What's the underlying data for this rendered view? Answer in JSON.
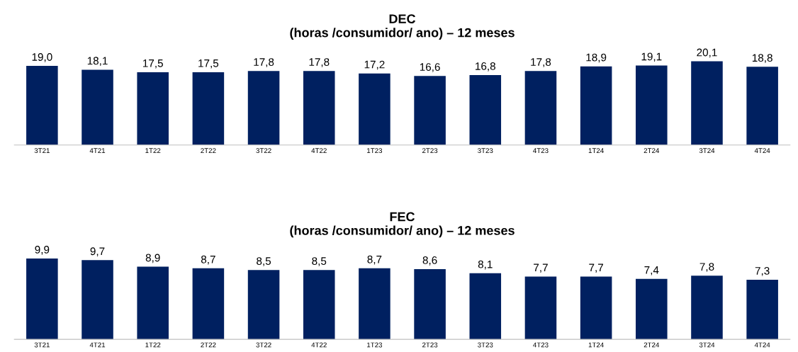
{
  "chart_data": [
    {
      "type": "bar",
      "title": "DEC\n(horas /consumidor/ ano) – 12 meses",
      "categories": [
        "3T21",
        "4T21",
        "1T22",
        "2T22",
        "3T22",
        "4T22",
        "1T23",
        "2T23",
        "3T23",
        "4T23",
        "1T24",
        "2T24",
        "3T24",
        "4T24"
      ],
      "values": [
        19.0,
        18.1,
        17.5,
        17.5,
        17.8,
        17.8,
        17.2,
        16.6,
        16.8,
        17.8,
        18.9,
        19.1,
        20.1,
        18.8
      ],
      "value_labels": [
        "19,0",
        "18,1",
        "17,5",
        "17,5",
        "17,8",
        "17,8",
        "17,2",
        "16,6",
        "16,8",
        "17,8",
        "18,9",
        "19,1",
        "20,1",
        "18,8"
      ],
      "color": "#002060",
      "tick_labels": "x"
    },
    {
      "type": "bar",
      "title": "FEC\n(horas /consumidor/ ano) – 12 meses",
      "categories": [
        "3T21",
        "4T21",
        "1T22",
        "2T22",
        "3T22",
        "4T22",
        "1T23",
        "2T23",
        "3T23",
        "4T23",
        "1T24",
        "2T24",
        "3T24",
        "4T24"
      ],
      "values": [
        9.9,
        9.7,
        8.9,
        8.7,
        8.5,
        8.5,
        8.7,
        8.6,
        8.1,
        7.7,
        7.7,
        7.4,
        7.8,
        7.3
      ],
      "value_labels": [
        "9,9",
        "9,7",
        "8,9",
        "8,7",
        "8,5",
        "8,5",
        "8,7",
        "8,6",
        "8,1",
        "7,7",
        "7,7",
        "7,4",
        "7,8",
        "7,3"
      ],
      "color": "#002060",
      "tick_labels": "x"
    }
  ]
}
